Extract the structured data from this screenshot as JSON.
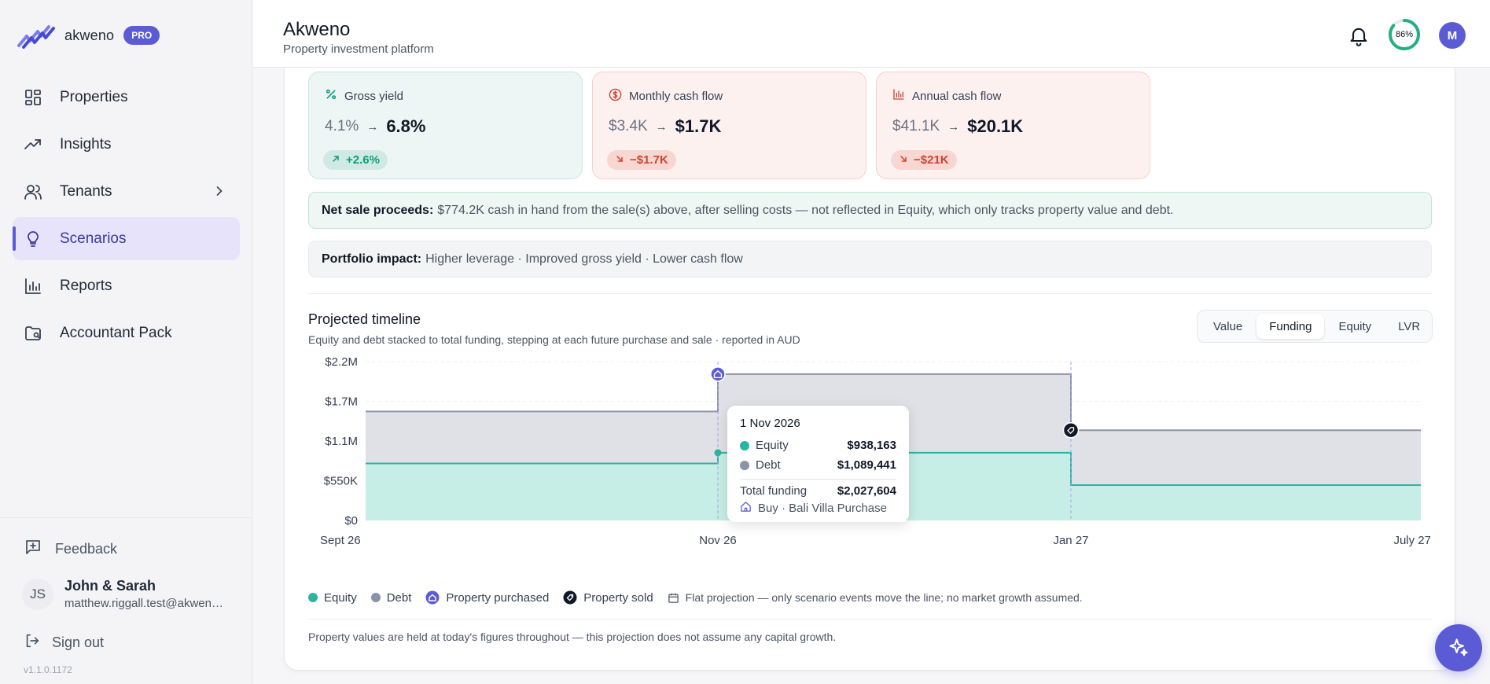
{
  "brand": {
    "name": "akweno",
    "badge": "PRO"
  },
  "sidebar": {
    "items": [
      {
        "label": "Properties",
        "icon": "grid-icon"
      },
      {
        "label": "Insights",
        "icon": "trend-icon"
      },
      {
        "label": "Tenants",
        "icon": "users-icon"
      },
      {
        "label": "Scenarios",
        "icon": "lightbulb-icon",
        "active": true
      },
      {
        "label": "Reports",
        "icon": "bar-chart-icon"
      },
      {
        "label": "Accountant Pack",
        "icon": "folder-icon"
      }
    ],
    "feedback": "Feedback",
    "user": {
      "initials": "JS",
      "name": "John & Sarah",
      "email": "matthew.riggall.test@akweno.com"
    },
    "signout": "Sign out",
    "version": "v1.1.0.1172"
  },
  "header": {
    "title": "Akweno",
    "subtitle": "Property investment platform",
    "progress": "86%",
    "progress_value": 0.86,
    "avatar": "M"
  },
  "metrics": [
    {
      "label": "Gross yield",
      "old": "4.1%",
      "new": "6.8%",
      "delta": "+2.6%",
      "tone": "green"
    },
    {
      "label": "Monthly cash flow",
      "old": "$3.4K",
      "new": "$1.7K",
      "delta": "−$1.7K",
      "tone": "red"
    },
    {
      "label": "Annual cash flow",
      "old": "$41.1K",
      "new": "$20.1K",
      "delta": "−$21K",
      "tone": "red"
    }
  ],
  "banners": {
    "net_sale_label": "Net sale proceeds:",
    "net_sale_text": "$774.2K cash in hand from the sale(s) above, after selling costs — not reflected in Equity, which only tracks property value and debt.",
    "impact_label": "Portfolio impact:",
    "impact_text": "Higher leverage · Improved gross yield · Lower cash flow"
  },
  "timeline": {
    "title": "Projected timeline",
    "subtitle": "Equity and debt stacked to total funding, stepping at each future purchase and sale · reported in AUD",
    "tabs": [
      "Value",
      "Funding",
      "Equity",
      "LVR"
    ],
    "active_tab": "Funding"
  },
  "tooltip": {
    "date": "1 Nov 2026",
    "equity_label": "Equity",
    "equity_value": "$938,163",
    "debt_label": "Debt",
    "debt_value": "$1,089,441",
    "total_label": "Total funding",
    "total_value": "$2,027,604",
    "event": "Buy · Bali Villa Purchase"
  },
  "legend": {
    "equity": "Equity",
    "debt": "Debt",
    "purchased": "Property purchased",
    "sold": "Property sold",
    "note": "Flat projection — only scenario events move the line; no market growth assumed."
  },
  "footnote": "Property values are held at today's figures throughout — this projection does not assume any capital growth.",
  "colors": {
    "accent": "#5b5bd6",
    "equity": "#2bb5a0",
    "debt": "#8b93a7",
    "positive": "#0f9b7f",
    "negative": "#d1432f"
  },
  "chart_data": {
    "type": "area",
    "stacked": true,
    "step": true,
    "x_ticks": [
      "Sept 26",
      "Nov 26",
      "Jan 27",
      "July 27"
    ],
    "y_ticks": [
      "$0",
      "$550K",
      "$1.1M",
      "$1.7M",
      "$2.2M"
    ],
    "ylim": [
      0,
      2200000
    ],
    "x": [
      "Sep 2026",
      "Nov 2026",
      "Jan 2027",
      "Jul 2027"
    ],
    "series": [
      {
        "name": "Equity",
        "values": [
          790000,
          938163,
          490000,
          490000
        ]
      },
      {
        "name": "Debt",
        "values": [
          720000,
          1089441,
          760000,
          760000
        ]
      }
    ],
    "events": [
      {
        "type": "Property purchased",
        "x": "Nov 2026"
      },
      {
        "type": "Property sold",
        "x": "Jan 2027"
      }
    ],
    "grid": true,
    "legend": "bottom"
  }
}
